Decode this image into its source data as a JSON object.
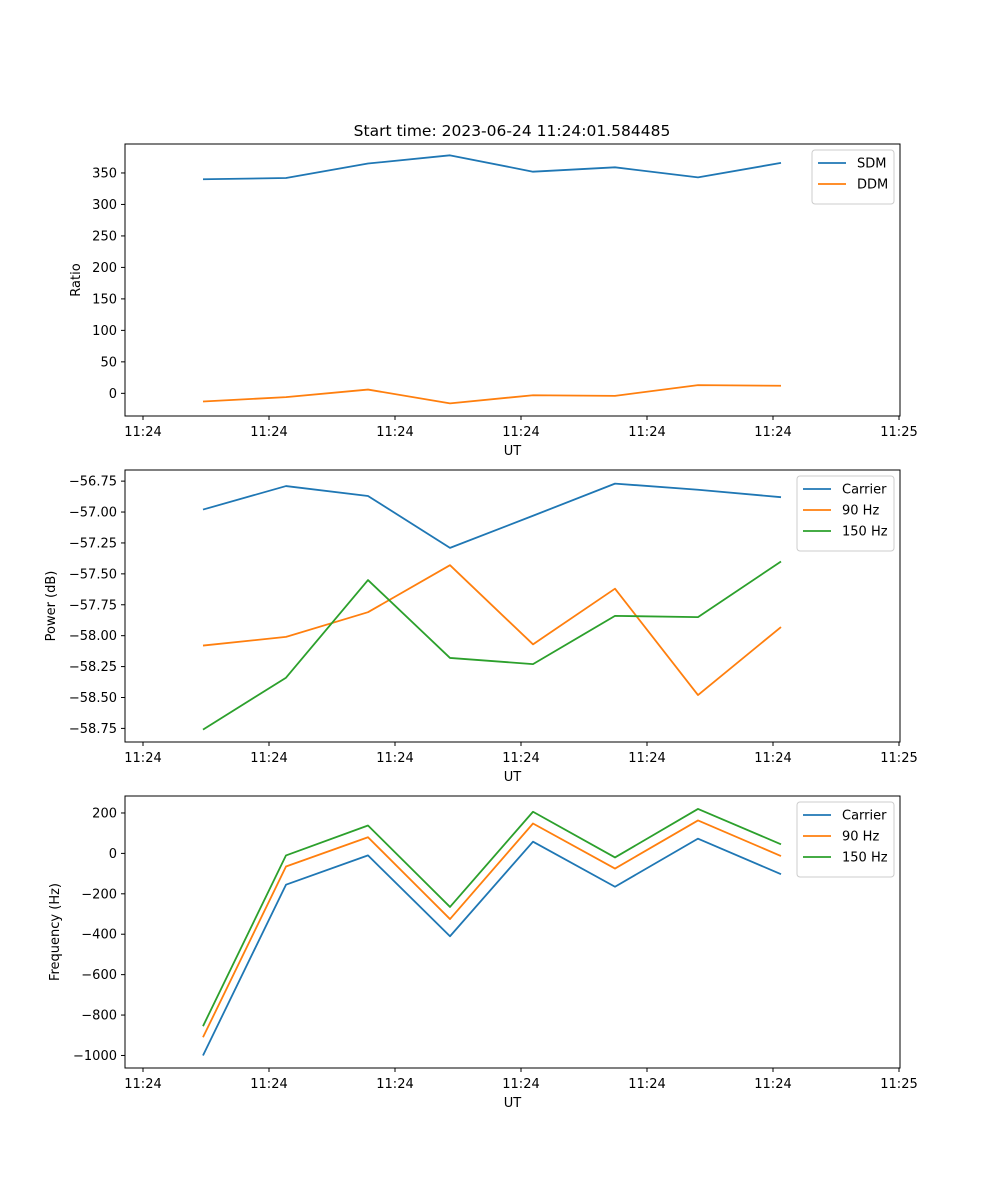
{
  "title": "Start time: 2023-06-24 11:24:01.584485",
  "chart_data": [
    {
      "type": "line",
      "xlabel": "UT",
      "ylabel": "Ratio",
      "x_tick_labels": [
        "11:24",
        "11:24",
        "11:24",
        "11:24",
        "11:24",
        "11:24",
        "11:25"
      ],
      "y_ticks": [
        0,
        50,
        100,
        150,
        200,
        250,
        300,
        350
      ],
      "ylim": [
        -36,
        396
      ],
      "legend_position": "top-right",
      "grid": false,
      "series": [
        {
          "name": "SDM",
          "color": "#1f77b4",
          "values": [
            340,
            342,
            365,
            378,
            352,
            359,
            343,
            366
          ]
        },
        {
          "name": "DDM",
          "color": "#ff7f0e",
          "values": [
            -13,
            -6,
            6,
            -16,
            -3,
            -4,
            13,
            12
          ]
        }
      ]
    },
    {
      "type": "line",
      "xlabel": "UT",
      "ylabel": "Power (dB)",
      "x_tick_labels": [
        "11:24",
        "11:24",
        "11:24",
        "11:24",
        "11:24",
        "11:24",
        "11:25"
      ],
      "y_ticks": [
        -58.75,
        -58.5,
        -58.25,
        -58.0,
        -57.75,
        -57.5,
        -57.25,
        -57.0,
        -56.75
      ],
      "y_tick_labels": [
        "−58.75",
        "−58.50",
        "−58.25",
        "−58.00",
        "−57.75",
        "−57.50",
        "−57.25",
        "−57.00",
        "−56.75"
      ],
      "ylim": [
        -58.86,
        -56.66
      ],
      "legend_position": "top-right",
      "grid": false,
      "series": [
        {
          "name": "Carrier",
          "color": "#1f77b4",
          "values": [
            -56.98,
            -56.79,
            -56.87,
            -57.29,
            -57.03,
            -56.77,
            -56.82,
            -56.88
          ]
        },
        {
          "name": "90 Hz",
          "color": "#ff7f0e",
          "values": [
            -58.08,
            -58.01,
            -57.81,
            -57.43,
            -58.07,
            -57.62,
            -58.48,
            -57.93
          ]
        },
        {
          "name": "150 Hz",
          "color": "#2ca02c",
          "values": [
            -58.76,
            -58.34,
            -57.55,
            -58.18,
            -58.23,
            -57.84,
            -57.85,
            -57.4
          ]
        }
      ]
    },
    {
      "type": "line",
      "xlabel": "UT",
      "ylabel": "Frequency (Hz)",
      "x_tick_labels": [
        "11:24",
        "11:24",
        "11:24",
        "11:24",
        "11:24",
        "11:24",
        "11:25"
      ],
      "y_ticks": [
        -1000,
        -800,
        -600,
        -400,
        -200,
        0,
        200
      ],
      "y_tick_labels": [
        "−1000",
        "−800",
        "−600",
        "−400",
        "−200",
        "0",
        "200"
      ],
      "ylim": [
        -1062,
        284
      ],
      "legend_position": "top-right",
      "grid": false,
      "series": [
        {
          "name": "Carrier",
          "color": "#1f77b4",
          "values": [
            -1000,
            -155,
            -10,
            -410,
            58,
            -165,
            73,
            -103
          ]
        },
        {
          "name": "90 Hz",
          "color": "#ff7f0e",
          "values": [
            -910,
            -65,
            80,
            -325,
            148,
            -75,
            163,
            -13
          ]
        },
        {
          "name": "150 Hz",
          "color": "#2ca02c",
          "values": [
            -855,
            -10,
            138,
            -265,
            206,
            -20,
            220,
            45
          ]
        }
      ]
    }
  ]
}
